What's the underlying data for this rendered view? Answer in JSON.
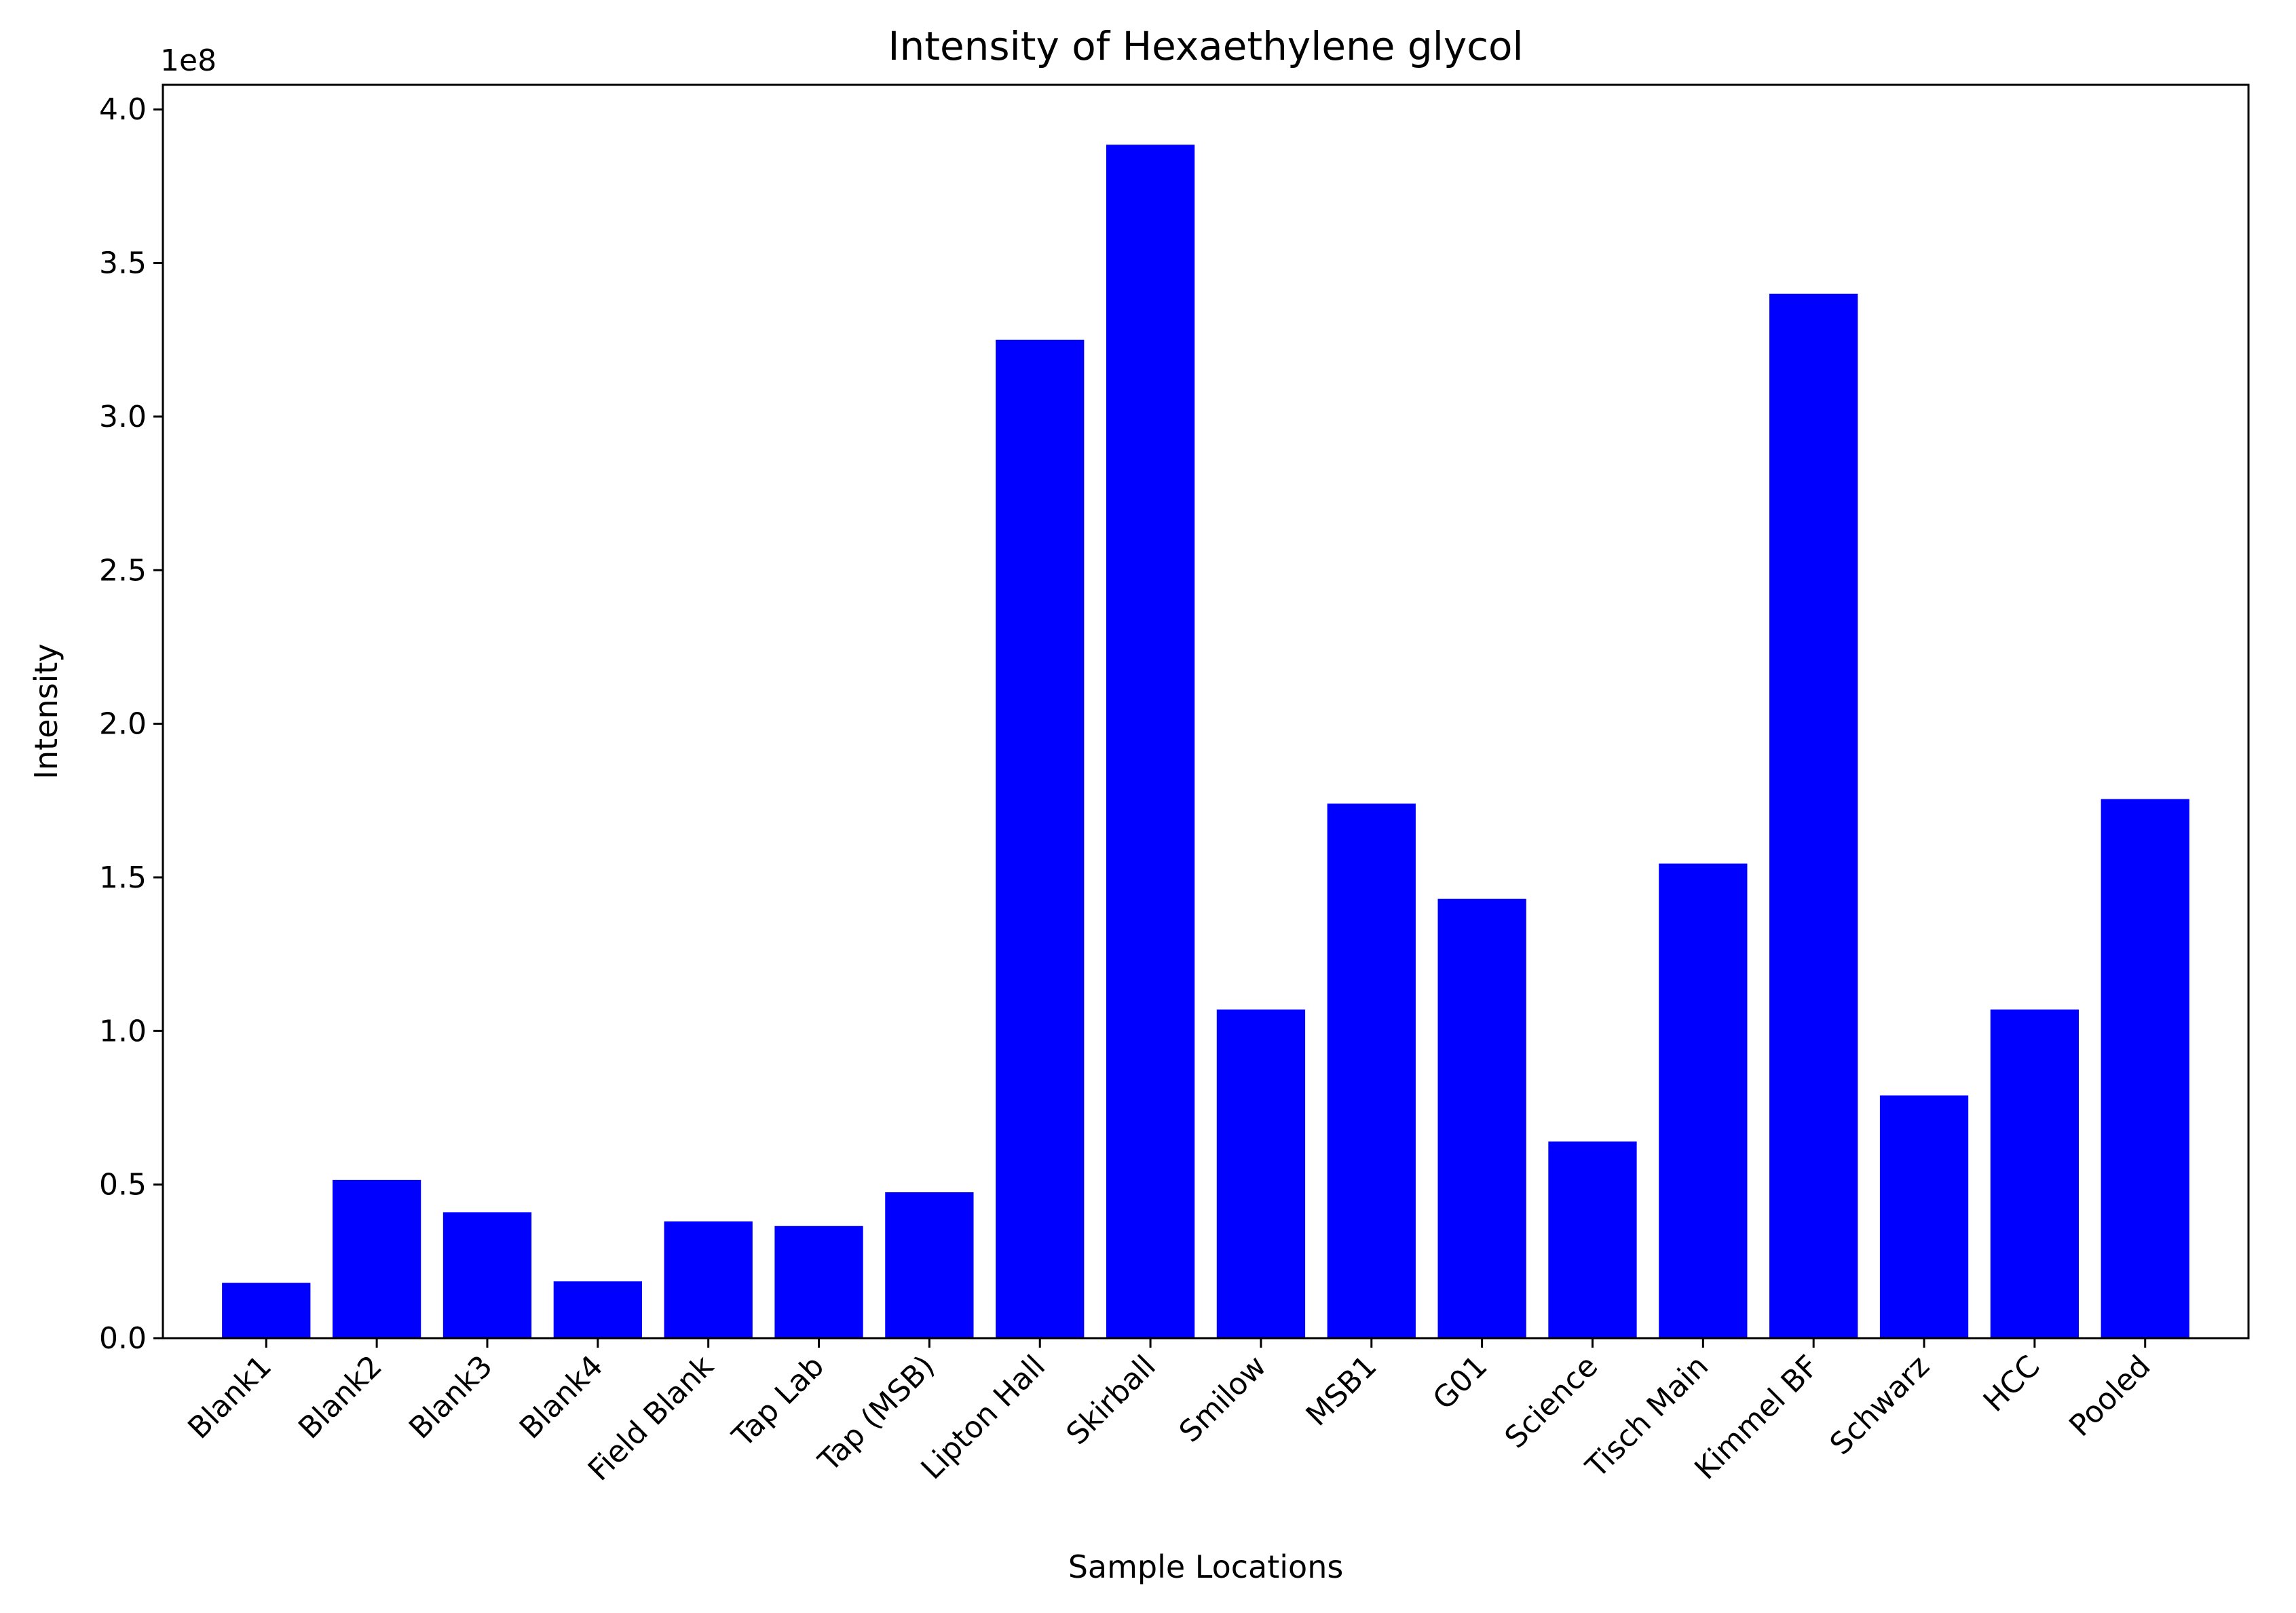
{
  "chart_data": {
    "type": "bar",
    "title": "Intensity of Hexaethylene glycol",
    "xlabel": "Sample Locations",
    "ylabel": "Intensity",
    "y_offset_label": "1e8",
    "y_scale": 100000000,
    "ylim": [
      0,
      4.08
    ],
    "yticks": [
      0.0,
      0.5,
      1.0,
      1.5,
      2.0,
      2.5,
      3.0,
      3.5,
      4.0
    ],
    "ytick_labels": [
      "0.0",
      "0.5",
      "1.0",
      "1.5",
      "2.0",
      "2.5",
      "3.0",
      "3.5",
      "4.0"
    ],
    "grid": false,
    "bar_color": "#0000ff",
    "categories": [
      "Blank1",
      "Blank2",
      "Blank3",
      "Blank4",
      "Field Blank",
      "Tap Lab",
      "Tap (MSB)",
      "Lipton Hall",
      "Skirball",
      "Smilow",
      "MSB1",
      "G01",
      "Science",
      "Tisch Main",
      "Kimmel BF",
      "Schwarz",
      "HCC",
      "Pooled"
    ],
    "values": [
      0.18,
      0.515,
      0.41,
      0.185,
      0.38,
      0.365,
      0.475,
      3.25,
      3.885,
      1.07,
      1.74,
      1.43,
      0.64,
      1.545,
      3.4,
      0.79,
      1.07,
      1.755
    ]
  }
}
